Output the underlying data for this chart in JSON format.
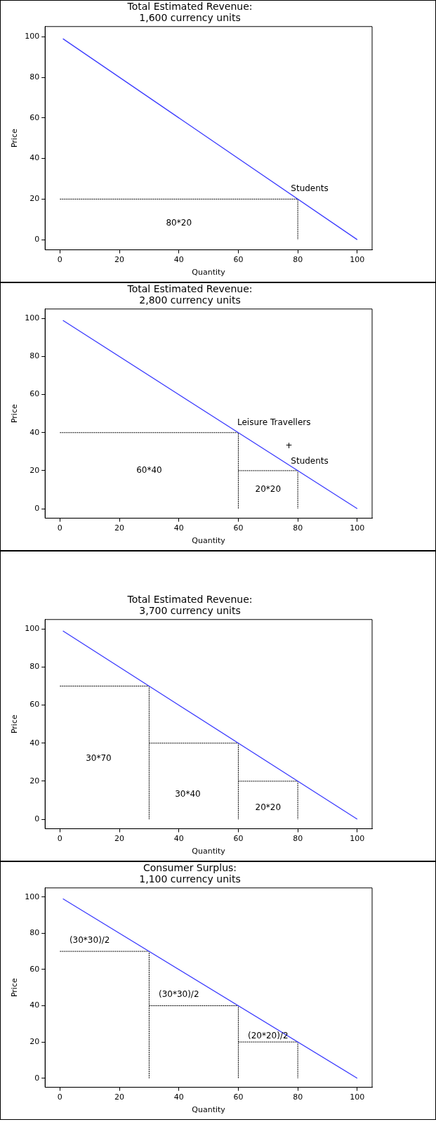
{
  "chart_data": [
    {
      "type": "line",
      "title": "Total Estimated Revenue:\n1,600 currency units",
      "xlabel": "Quantity",
      "ylabel": "Price",
      "marker": "none",
      "grid": false,
      "legend": false,
      "xlim": [
        -5,
        105
      ],
      "ylim": [
        -5,
        105
      ],
      "xticks": [
        0,
        20,
        40,
        60,
        80,
        100
      ],
      "yticks": [
        0,
        20,
        40,
        60,
        80,
        100
      ],
      "series": [
        {
          "x": [
            1,
            100
          ],
          "values": [
            99,
            0
          ],
          "color": "#3b3bff",
          "line_style": "solid"
        },
        {
          "x": [
            0,
            80,
            80
          ],
          "values": [
            20,
            20,
            0
          ],
          "color": "#000000",
          "line_style": "dotted"
        }
      ],
      "annotations": [
        "Students",
        "80*20"
      ]
    },
    {
      "type": "line",
      "title": "Total Estimated Revenue:\n2,800 currency units",
      "xlabel": "Quantity",
      "ylabel": "Price",
      "marker": "none",
      "grid": false,
      "legend": false,
      "xlim": [
        -5,
        105
      ],
      "ylim": [
        -5,
        105
      ],
      "xticks": [
        0,
        20,
        40,
        60,
        80,
        100
      ],
      "yticks": [
        0,
        20,
        40,
        60,
        80,
        100
      ],
      "series": [
        {
          "x": [
            1,
            100
          ],
          "values": [
            99,
            0
          ],
          "color": "#3b3bff",
          "line_style": "solid"
        },
        {
          "x": [
            0,
            60,
            60
          ],
          "values": [
            40,
            40,
            0
          ],
          "color": "#000000",
          "line_style": "dotted"
        },
        {
          "x": [
            60,
            80,
            80
          ],
          "values": [
            20,
            20,
            0
          ],
          "color": "#000000",
          "line_style": "dotted"
        }
      ],
      "annotations": [
        "Leisure Travellers",
        "+",
        "Students",
        "60*40",
        "20*20"
      ]
    },
    {
      "type": "line",
      "title": "Total Estimated Revenue:\n3,700 currency units",
      "xlabel": "Quantity",
      "ylabel": "Price",
      "marker": "none",
      "grid": false,
      "legend": false,
      "xlim": [
        -5,
        105
      ],
      "ylim": [
        -5,
        105
      ],
      "xticks": [
        0,
        20,
        40,
        60,
        80,
        100
      ],
      "yticks": [
        0,
        20,
        40,
        60,
        80,
        100
      ],
      "series": [
        {
          "x": [
            1,
            100
          ],
          "values": [
            99,
            0
          ],
          "color": "#3b3bff",
          "line_style": "solid"
        },
        {
          "x": [
            0,
            30,
            30
          ],
          "values": [
            70,
            70,
            0
          ],
          "color": "#000000",
          "line_style": "dotted"
        },
        {
          "x": [
            30,
            60,
            60
          ],
          "values": [
            40,
            40,
            0
          ],
          "color": "#000000",
          "line_style": "dotted"
        },
        {
          "x": [
            60,
            80,
            80
          ],
          "values": [
            20,
            20,
            0
          ],
          "color": "#000000",
          "line_style": "dotted"
        }
      ],
      "annotations": [
        "30*70",
        "30*40",
        "20*20"
      ]
    },
    {
      "type": "line",
      "title": "Consumer Surplus:\n1,100 currency units",
      "xlabel": "Quantity",
      "ylabel": "Price",
      "marker": "none",
      "grid": false,
      "legend": false,
      "xlim": [
        -5,
        105
      ],
      "ylim": [
        -5,
        105
      ],
      "xticks": [
        0,
        20,
        40,
        60,
        80,
        100
      ],
      "yticks": [
        0,
        20,
        40,
        60,
        80,
        100
      ],
      "series": [
        {
          "x": [
            1,
            100
          ],
          "values": [
            99,
            0
          ],
          "color": "#3b3bff",
          "line_style": "solid"
        },
        {
          "x": [
            0,
            30,
            30
          ],
          "values": [
            70,
            70,
            0
          ],
          "color": "#000000",
          "line_style": "dotted"
        },
        {
          "x": [
            30,
            60,
            60
          ],
          "values": [
            40,
            40,
            0
          ],
          "color": "#000000",
          "line_style": "dotted"
        },
        {
          "x": [
            60,
            80,
            80
          ],
          "values": [
            20,
            20,
            0
          ],
          "color": "#000000",
          "line_style": "dotted"
        }
      ],
      "annotations": [
        "(30*30)/2",
        "(30*30)/2",
        "(20*20)/2"
      ]
    }
  ]
}
